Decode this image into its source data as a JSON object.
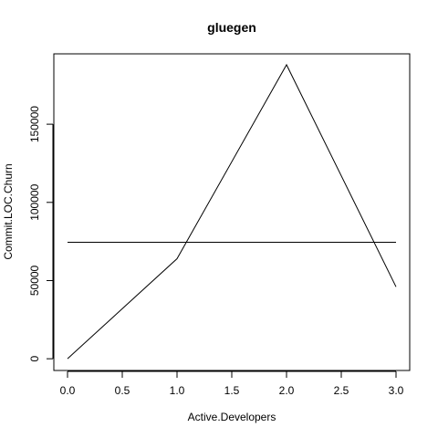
{
  "chart_data": {
    "type": "line",
    "title": "gluegen",
    "xlabel": "Active.Developers",
    "ylabel": "Commit.LOC.Churn",
    "xlim": [
      -0.125,
      3.125
    ],
    "ylim": [
      -7500,
      195000
    ],
    "x_ticks": [
      "0.0",
      "0.5",
      "1.0",
      "1.5",
      "2.0",
      "2.5",
      "3.0"
    ],
    "y_ticks": [
      "0",
      "50000",
      "100000",
      "150000"
    ],
    "grid": false,
    "series": [
      {
        "x": [
          0,
          1,
          2,
          3
        ],
        "y": [
          0,
          64000,
          188000,
          46000
        ]
      }
    ],
    "reference_line": {
      "y": 74500,
      "x_from": 0,
      "x_to": 3
    }
  }
}
